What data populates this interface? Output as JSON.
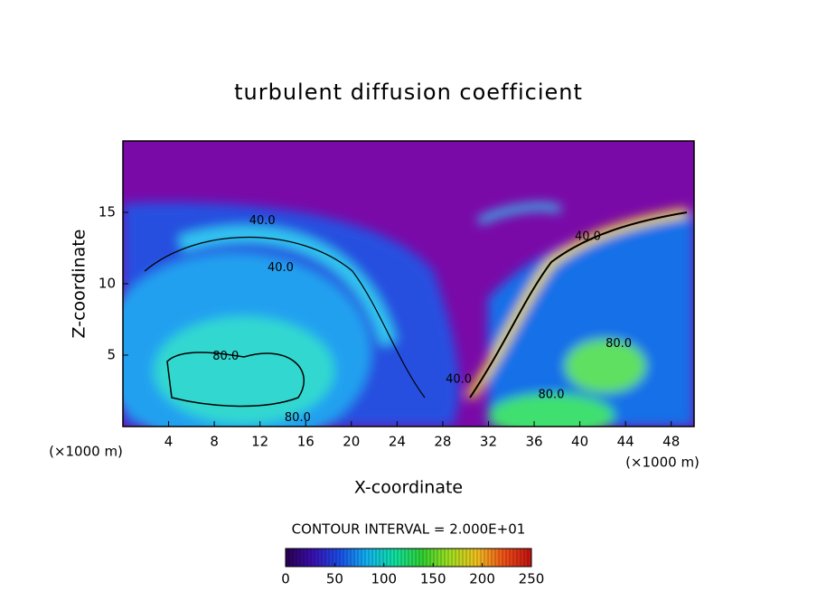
{
  "chart_data": {
    "type": "contour",
    "title": "turbulent diffusion coefficient",
    "x_label": "X-coordinate",
    "y_label": "Z-coordinate",
    "x_unit_left": "(×1000 m)",
    "x_unit_right": "(×1000 m)",
    "contour_interval_label": "CONTOUR INTERVAL = 2.000E+01",
    "xlim": [
      0,
      50
    ],
    "xticks": [
      4,
      8,
      12,
      16,
      20,
      24,
      28,
      32,
      36,
      40,
      44,
      48
    ],
    "ylim": [
      0,
      20
    ],
    "yticks": [
      5,
      10,
      15
    ],
    "contour_labels": [
      {
        "text": "40.0",
        "x": 12.2,
        "y": 14.4
      },
      {
        "text": "40.0",
        "x": 13.8,
        "y": 11.1
      },
      {
        "text": "80.0",
        "x": 9.0,
        "y": 4.9
      },
      {
        "text": "80.0",
        "x": 15.3,
        "y": 0.6
      },
      {
        "text": "40.0",
        "x": 29.4,
        "y": 3.3
      },
      {
        "text": "80.0",
        "x": 37.5,
        "y": 2.2
      },
      {
        "text": "80.0",
        "x": 43.4,
        "y": 5.8
      },
      {
        "text": "40.0",
        "x": 40.7,
        "y": 13.3
      }
    ],
    "colorbar": {
      "lim": [
        0,
        250
      ],
      "ticks": [
        0,
        50,
        100,
        150,
        200,
        250
      ],
      "colors": [
        "#2a0050",
        "#3a0fb0",
        "#1a4fe8",
        "#12b4f0",
        "#10e0a0",
        "#30d030",
        "#a0e020",
        "#f0c020",
        "#f05018",
        "#c01010"
      ]
    }
  }
}
